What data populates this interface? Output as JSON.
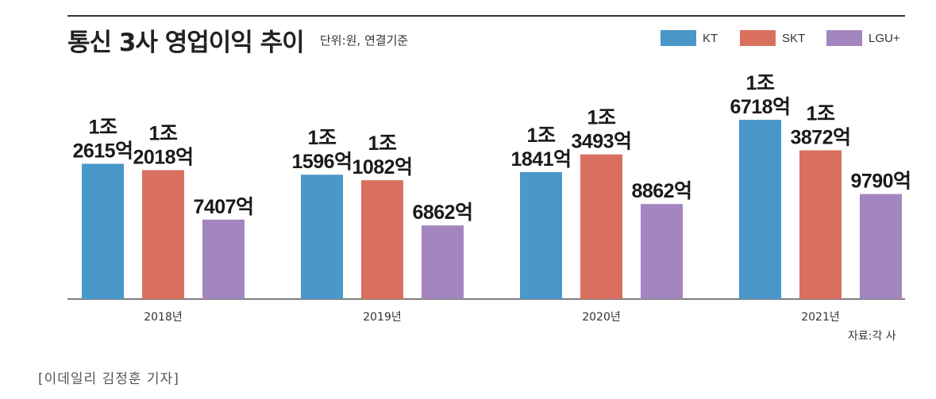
{
  "header": {
    "title": "통신 3사 영업이익 추이",
    "unit_note": "단위:원, 연결기준"
  },
  "legend": [
    {
      "name": "KT",
      "color": "#4a97c9"
    },
    {
      "name": "SKT",
      "color": "#d9705f"
    },
    {
      "name": "LGU+",
      "color": "#a385bf"
    }
  ],
  "source": "자료:각 사",
  "credit": "[이데일리 김정훈 기자]",
  "chart_data": {
    "type": "bar",
    "title": "통신 3사 영업이익 추이",
    "unit": "억원",
    "categories": [
      "2018년",
      "2019년",
      "2020년",
      "2021년"
    ],
    "series": [
      {
        "name": "KT",
        "color": "#4a97c9",
        "values": [
          12615,
          11596,
          11841,
          16718
        ],
        "labels": [
          [
            "1조",
            "2615억"
          ],
          [
            "1조",
            "1596억"
          ],
          [
            "1조",
            "1841억"
          ],
          [
            "1조",
            "6718억"
          ]
        ]
      },
      {
        "name": "SKT",
        "color": "#d9705f",
        "values": [
          12018,
          11082,
          13493,
          13872
        ],
        "labels": [
          [
            "1조",
            "2018억"
          ],
          [
            "1조",
            "1082억"
          ],
          [
            "1조",
            "3493억"
          ],
          [
            "1조",
            "3872억"
          ]
        ]
      },
      {
        "name": "LGU+",
        "color": "#a385bf",
        "values": [
          7407,
          6862,
          8862,
          9790
        ],
        "labels": [
          [
            "7407억"
          ],
          [
            "6862억"
          ],
          [
            "8862억"
          ],
          [
            "9790억"
          ]
        ]
      }
    ],
    "ylim": [
      0,
      17000
    ],
    "grid": false,
    "legend_position": "top-right"
  }
}
